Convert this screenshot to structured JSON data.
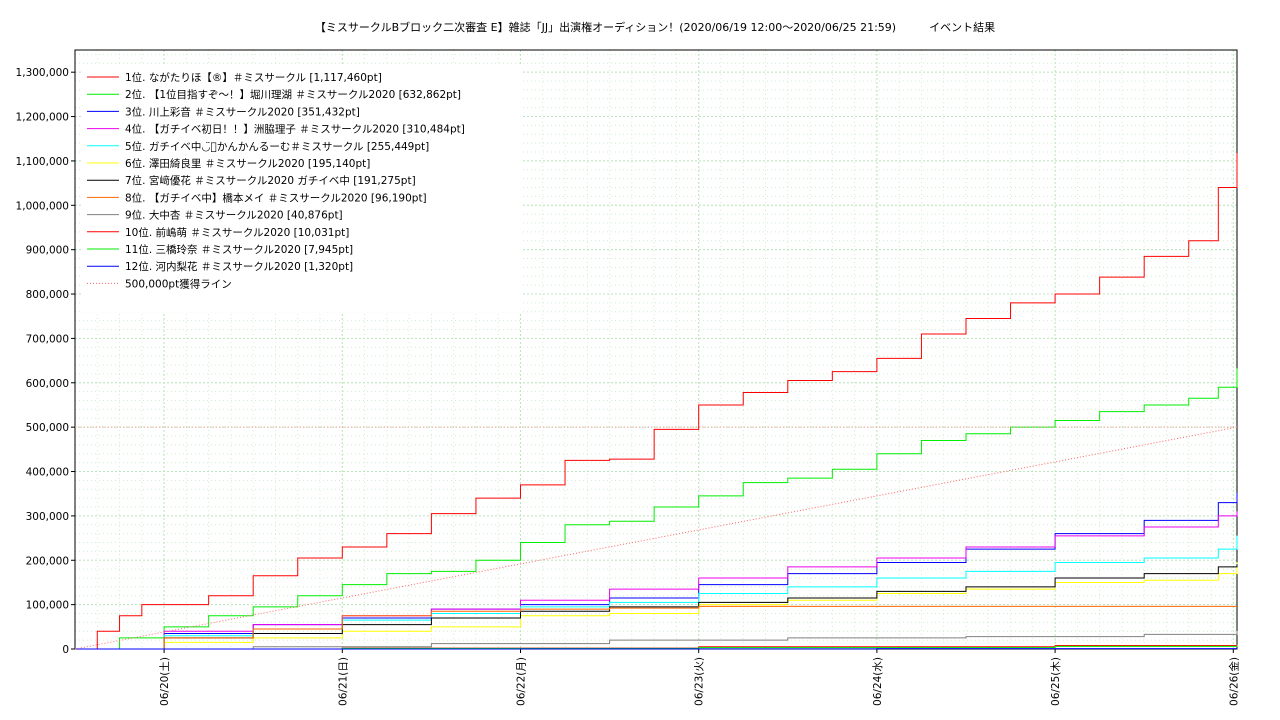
{
  "chart_data": {
    "type": "line",
    "title": "【ミスサークルBブロック二次審査 E】雑誌「JJ」出演権オーディション！(2020/06/19 12:00〜2020/06/25 21:59)　　　イベント結果",
    "xlabel": "",
    "ylabel": "",
    "x_range": [
      "2020-06-19 12:00",
      "2020-06-26 00:30"
    ],
    "ylim": [
      0,
      1350000
    ],
    "y_ticks": [
      0,
      100000,
      200000,
      300000,
      400000,
      500000,
      600000,
      700000,
      800000,
      900000,
      1000000,
      1100000,
      1200000,
      1300000
    ],
    "y_tick_labels": [
      "0",
      "100,000",
      "200,000",
      "300,000",
      "400,000",
      "500,000",
      "600,000",
      "700,000",
      "800,000",
      "900,000",
      "1,000,000",
      "1,100,000",
      "1,200,000",
      "1,300,000"
    ],
    "x_ticks": [
      "2020-06-20",
      "2020-06-21",
      "2020-06-22",
      "2020-06-23",
      "2020-06-24",
      "2020-06-25",
      "2020-06-26"
    ],
    "x_tick_labels": [
      "06/20(土)",
      "06/21(日)",
      "06/22(月)",
      "06/23(火)",
      "06/24(水)",
      "06/25(木)",
      "06/26(金)"
    ],
    "grid": true,
    "legend_position": "top-left",
    "series": [
      {
        "name": "1位. ながたりほ【®】＃ミスサークル [1,117,460pt]",
        "color": "#ff0000",
        "x": [
          "2020-06-19 12:00",
          "2020-06-19 15:00",
          "2020-06-19 18:00",
          "2020-06-19 21:00",
          "2020-06-20 00:00",
          "2020-06-20 06:00",
          "2020-06-20 12:00",
          "2020-06-20 18:00",
          "2020-06-21 00:00",
          "2020-06-21 06:00",
          "2020-06-21 12:00",
          "2020-06-21 18:00",
          "2020-06-22 00:00",
          "2020-06-22 06:00",
          "2020-06-22 12:00",
          "2020-06-22 18:00",
          "2020-06-23 00:00",
          "2020-06-23 06:00",
          "2020-06-23 12:00",
          "2020-06-23 18:00",
          "2020-06-24 00:00",
          "2020-06-24 06:00",
          "2020-06-24 12:00",
          "2020-06-24 18:00",
          "2020-06-25 00:00",
          "2020-06-25 06:00",
          "2020-06-25 12:00",
          "2020-06-25 18:00",
          "2020-06-25 21:59",
          "2020-06-26 00:30"
        ],
        "y": [
          0,
          40000,
          75000,
          100000,
          100000,
          120000,
          165000,
          205000,
          230000,
          260000,
          305000,
          340000,
          370000,
          425000,
          428000,
          495000,
          550000,
          578000,
          605000,
          625000,
          655000,
          710000,
          745000,
          780000,
          800000,
          838000,
          885000,
          920000,
          1040000,
          1117460
        ]
      },
      {
        "name": "2位. 【1位目指すぞ〜！】堀川理湖 ＃ミスサークル2020 [632,862pt]",
        "color": "#00ee00",
        "x": [
          "2020-06-19 12:00",
          "2020-06-19 18:00",
          "2020-06-20 00:00",
          "2020-06-20 06:00",
          "2020-06-20 12:00",
          "2020-06-20 18:00",
          "2020-06-21 00:00",
          "2020-06-21 06:00",
          "2020-06-21 12:00",
          "2020-06-21 18:00",
          "2020-06-22 00:00",
          "2020-06-22 06:00",
          "2020-06-22 12:00",
          "2020-06-22 18:00",
          "2020-06-23 00:00",
          "2020-06-23 06:00",
          "2020-06-23 12:00",
          "2020-06-23 18:00",
          "2020-06-24 00:00",
          "2020-06-24 06:00",
          "2020-06-24 12:00",
          "2020-06-24 18:00",
          "2020-06-25 00:00",
          "2020-06-25 06:00",
          "2020-06-25 12:00",
          "2020-06-25 18:00",
          "2020-06-25 21:59",
          "2020-06-26 00:30"
        ],
        "y": [
          0,
          25000,
          50000,
          75000,
          95000,
          120000,
          145000,
          170000,
          175000,
          200000,
          240000,
          280000,
          288000,
          320000,
          345000,
          375000,
          385000,
          405000,
          440000,
          470000,
          485000,
          500000,
          515000,
          535000,
          550000,
          565000,
          590000,
          632862
        ]
      },
      {
        "name": "3位. 川上彩音 ＃ミスサークル2020 [351,432pt]",
        "color": "#0000ff",
        "x": [
          "2020-06-19 12:00",
          "2020-06-20 00:00",
          "2020-06-20 12:00",
          "2020-06-21 00:00",
          "2020-06-21 12:00",
          "2020-06-22 00:00",
          "2020-06-22 12:00",
          "2020-06-23 00:00",
          "2020-06-23 12:00",
          "2020-06-24 00:00",
          "2020-06-24 12:00",
          "2020-06-25 00:00",
          "2020-06-25 12:00",
          "2020-06-25 21:59",
          "2020-06-26 00:30"
        ],
        "y": [
          0,
          35000,
          55000,
          70000,
          90000,
          100000,
          115000,
          145000,
          170000,
          195000,
          225000,
          260000,
          290000,
          330000,
          351432
        ]
      },
      {
        "name": "4位. 【ガチイベ初日！！】洲脇理子 ＃ミスサークル2020 [310,484pt]",
        "color": "#ee00ee",
        "x": [
          "2020-06-19 12:00",
          "2020-06-20 00:00",
          "2020-06-20 12:00",
          "2020-06-21 00:00",
          "2020-06-21 12:00",
          "2020-06-22 00:00",
          "2020-06-22 12:00",
          "2020-06-23 00:00",
          "2020-06-23 12:00",
          "2020-06-24 00:00",
          "2020-06-24 12:00",
          "2020-06-25 00:00",
          "2020-06-25 12:00",
          "2020-06-25 21:59",
          "2020-06-26 00:30"
        ],
        "y": [
          0,
          40000,
          55000,
          75000,
          90000,
          110000,
          135000,
          160000,
          185000,
          205000,
          230000,
          255000,
          275000,
          300000,
          310484
        ]
      },
      {
        "name": "5位. ガチイベ中◡̈⃝かんかんるーむ＃ミスサークル [255,449pt]",
        "color": "#00ffff",
        "x": [
          "2020-06-19 12:00",
          "2020-06-20 00:00",
          "2020-06-20 12:00",
          "2020-06-21 00:00",
          "2020-06-21 12:00",
          "2020-06-22 00:00",
          "2020-06-22 12:00",
          "2020-06-23 00:00",
          "2020-06-23 12:00",
          "2020-06-24 00:00",
          "2020-06-24 12:00",
          "2020-06-25 00:00",
          "2020-06-25 12:00",
          "2020-06-25 21:59",
          "2020-06-26 00:30"
        ],
        "y": [
          0,
          30000,
          45000,
          65000,
          80000,
          95000,
          105000,
          125000,
          140000,
          160000,
          175000,
          195000,
          205000,
          225000,
          255449
        ]
      },
      {
        "name": "6位. 澤田綺良里 ＃ミスサークル2020 [195,140pt]",
        "color": "#ffff00",
        "x": [
          "2020-06-19 12:00",
          "2020-06-20 00:00",
          "2020-06-20 12:00",
          "2020-06-21 00:00",
          "2020-06-21 12:00",
          "2020-06-22 00:00",
          "2020-06-22 12:00",
          "2020-06-23 00:00",
          "2020-06-23 12:00",
          "2020-06-24 00:00",
          "2020-06-24 12:00",
          "2020-06-25 00:00",
          "2020-06-25 12:00",
          "2020-06-25 21:59",
          "2020-06-26 00:30"
        ],
        "y": [
          0,
          15000,
          25000,
          40000,
          50000,
          75000,
          80000,
          100000,
          110000,
          125000,
          135000,
          150000,
          155000,
          170000,
          195140
        ]
      },
      {
        "name": "7位. 宮﨑優花 ＃ミスサークル2020 ガチイベ中 [191,275pt]",
        "color": "#000000",
        "x": [
          "2020-06-19 12:00",
          "2020-06-20 00:00",
          "2020-06-20 12:00",
          "2020-06-21 00:00",
          "2020-06-21 12:00",
          "2020-06-22 00:00",
          "2020-06-22 12:00",
          "2020-06-23 00:00",
          "2020-06-23 12:00",
          "2020-06-24 00:00",
          "2020-06-24 12:00",
          "2020-06-25 00:00",
          "2020-06-25 12:00",
          "2020-06-25 21:59",
          "2020-06-26 00:30"
        ],
        "y": [
          0,
          25000,
          35000,
          55000,
          70000,
          85000,
          95000,
          105000,
          115000,
          130000,
          140000,
          160000,
          170000,
          185000,
          191275
        ]
      },
      {
        "name": "8位. 【ガチイベ中】橋本メイ ＃ミスサークル2020 [96,190pt]",
        "color": "#ff6600",
        "x": [
          "2020-06-19 12:00",
          "2020-06-20 00:00",
          "2020-06-20 12:00",
          "2020-06-21 00:00",
          "2020-06-21 12:00",
          "2020-06-22 00:00",
          "2020-06-22 12:00",
          "2020-06-23 00:00",
          "2020-06-24 00:00",
          "2020-06-25 00:00",
          "2020-06-26 00:30"
        ],
        "y": [
          0,
          25000,
          45000,
          75000,
          85000,
          90000,
          92000,
          96190,
          96190,
          96190,
          96190
        ]
      },
      {
        "name": "9位. 大中杏 ＃ミスサークル2020 [40,876pt]",
        "color": "#808080",
        "x": [
          "2020-06-19 12:00",
          "2020-06-20 12:00",
          "2020-06-21 12:00",
          "2020-06-22 12:00",
          "2020-06-23 12:00",
          "2020-06-24 12:00",
          "2020-06-25 12:00",
          "2020-06-26 00:30"
        ],
        "y": [
          0,
          5000,
          12000,
          20000,
          25000,
          28000,
          33000,
          40876
        ]
      },
      {
        "name": "10位. 前嶋萌 ＃ミスサークル2020 [10,031pt]",
        "color": "#ff0000",
        "x": [
          "2020-06-19 12:00",
          "2020-06-21 00:00",
          "2020-06-23 00:00",
          "2020-06-25 00:00",
          "2020-06-26 00:30"
        ],
        "y": [
          0,
          2000,
          5000,
          8000,
          10031
        ]
      },
      {
        "name": "11位. 三橋玲奈 ＃ミスサークル2020 [7,945pt]",
        "color": "#00ee00",
        "x": [
          "2020-06-19 12:00",
          "2020-06-21 00:00",
          "2020-06-23 00:00",
          "2020-06-25 00:00",
          "2020-06-26 00:30"
        ],
        "y": [
          0,
          1500,
          3000,
          6000,
          7945
        ]
      },
      {
        "name": "12位. 河内梨花 ＃ミスサークル2020 [1,320pt]",
        "color": "#0000ff",
        "x": [
          "2020-06-19 12:00",
          "2020-06-22 00:00",
          "2020-06-24 00:00",
          "2020-06-26 00:30"
        ],
        "y": [
          0,
          300,
          800,
          1320
        ]
      },
      {
        "name": "500,000pt獲得ライン",
        "color": "#ff6666",
        "dotted": true,
        "x": [
          "2020-06-19 12:00",
          "2020-06-26 00:30"
        ],
        "y": [
          0,
          500000
        ]
      }
    ]
  }
}
